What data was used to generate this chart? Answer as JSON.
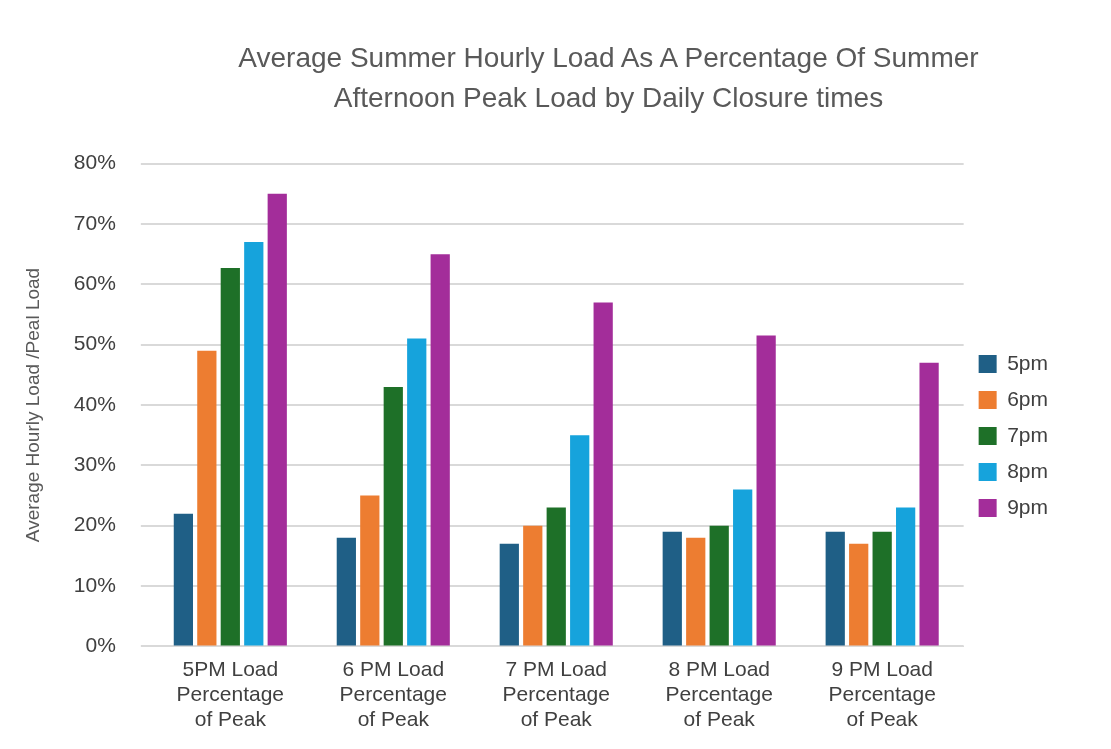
{
  "chart_data": {
    "type": "bar",
    "title": "Average Summer Hourly Load As A Percentage Of Summer Afternoon Peak Load by Daily Closure times",
    "ylabel": "Average Hourly Load /Peal Load",
    "categories": [
      "5PM Load Percentage of Peak",
      "6 PM Load Percentage of Peak",
      "7 PM Load Percentage of Peak",
      "8 PM Load Percentage of Peak",
      "9 PM Load Percentage of Peak"
    ],
    "series": [
      {
        "name": "5pm",
        "color": "#1f5f86",
        "values": [
          22,
          18,
          17,
          19,
          19
        ]
      },
      {
        "name": "6pm",
        "color": "#ed7d31",
        "values": [
          49,
          25,
          20,
          18,
          17
        ]
      },
      {
        "name": "7pm",
        "color": "#1e7028",
        "values": [
          62.7,
          43,
          23,
          20,
          19
        ]
      },
      {
        "name": "8pm",
        "color": "#16a3dc",
        "values": [
          67,
          51,
          35,
          26,
          23
        ]
      },
      {
        "name": "9pm",
        "color": "#a32d9a",
        "values": [
          75,
          65,
          57,
          51.5,
          47
        ]
      }
    ],
    "ylim": [
      0,
      80
    ],
    "yticks": [
      {
        "value": 0,
        "label": "0%"
      },
      {
        "value": 10,
        "label": "10%"
      },
      {
        "value": 20,
        "label": "20%"
      },
      {
        "value": 30,
        "label": "30%"
      },
      {
        "value": 40,
        "label": "40%"
      },
      {
        "value": 50,
        "label": "50%"
      },
      {
        "value": 60,
        "label": "60%"
      },
      {
        "value": 70,
        "label": "70%"
      },
      {
        "value": 80,
        "label": "80%"
      }
    ],
    "grid": "y",
    "legend": "right"
  }
}
